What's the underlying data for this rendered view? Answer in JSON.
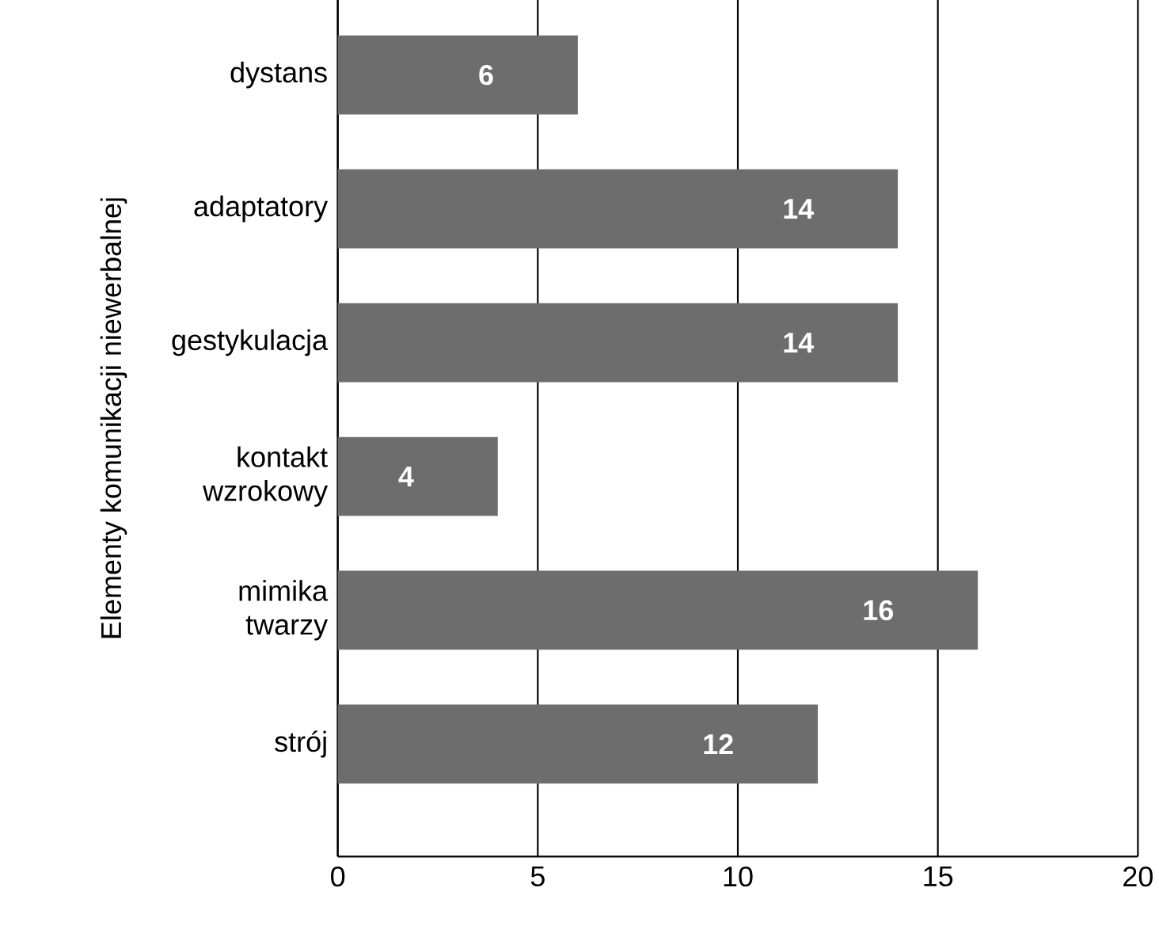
{
  "chart_data": {
    "type": "bar",
    "orientation": "horizontal",
    "ylabel": "Elementy komunikacji niewerbalnej",
    "categories": [
      "dystans",
      "adaptatory",
      "gestykulacja",
      "kontakt wzrokowy",
      "mimika twarzy",
      "strój"
    ],
    "values": [
      6,
      14,
      14,
      4,
      16,
      12
    ],
    "color": "#6d6d6d",
    "xlim": [
      0,
      20
    ],
    "xticks": [
      0,
      5,
      10,
      15,
      20
    ],
    "grid": "x",
    "data_labels": true
  }
}
